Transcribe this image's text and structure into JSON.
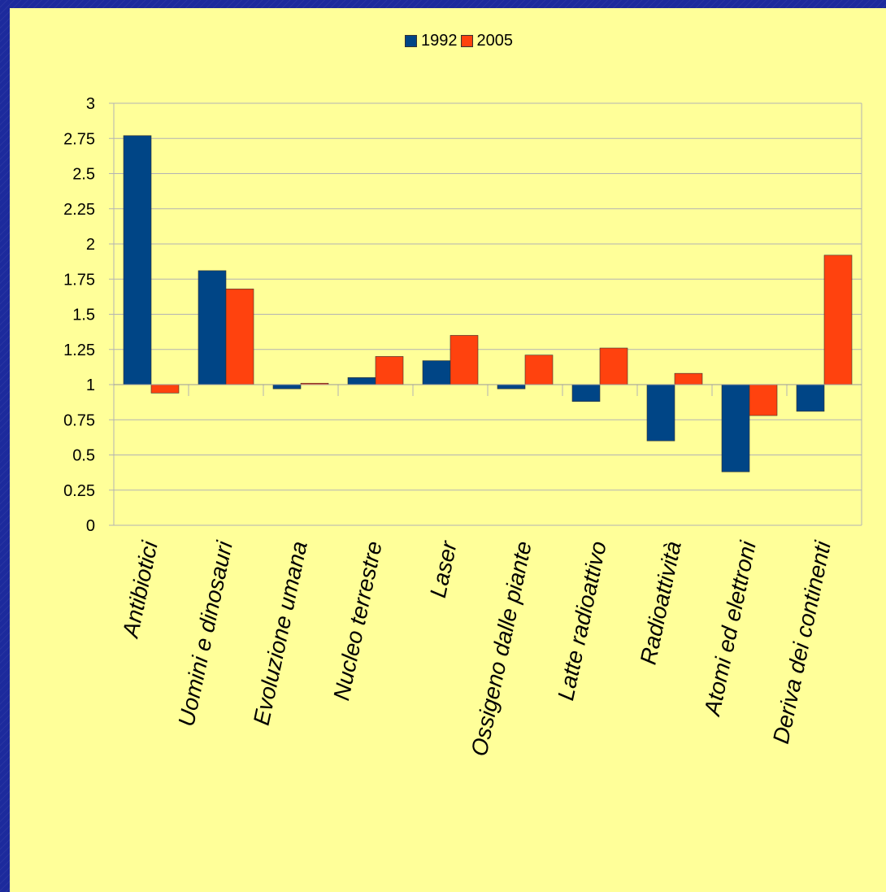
{
  "chart_data": {
    "type": "bar",
    "categories": [
      "Antibiotici",
      "Uomini e dinosauri",
      "Evoluzione umana",
      "Nucleo terrestre",
      "Laser",
      "Ossigeno dalle piante",
      "Latte radioattivo",
      "Radioattività",
      "Atomi ed elettroni",
      "Deriva dei continenti"
    ],
    "series": [
      {
        "name": "1992",
        "color": "#004586",
        "values": [
          2.77,
          1.81,
          0.97,
          1.05,
          1.17,
          0.97,
          0.88,
          0.6,
          0.38,
          0.81
        ]
      },
      {
        "name": "2005",
        "color": "#ff420e",
        "values": [
          0.94,
          1.68,
          1.01,
          1.2,
          1.35,
          1.21,
          1.26,
          1.08,
          0.78,
          1.92
        ]
      }
    ],
    "baseline": 1,
    "ylim": [
      0,
      3
    ],
    "yticks": [
      "0",
      "0.25",
      "0.5",
      "0.75",
      "1",
      "1.25",
      "1.5",
      "1.75",
      "2",
      "2.25",
      "2.5",
      "2.75",
      "3"
    ],
    "grid": true,
    "legend": "top-center",
    "title": "",
    "xlabel": "",
    "ylabel": ""
  }
}
